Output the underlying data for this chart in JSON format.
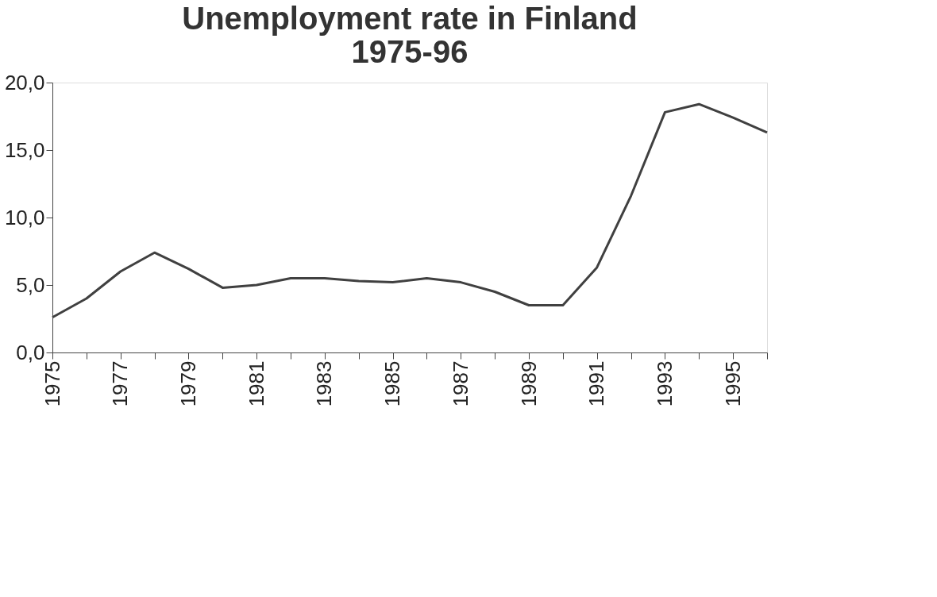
{
  "chart_data": {
    "type": "line",
    "title": "Unemployment rate in Finland\n1975-96",
    "categories": [
      "1975",
      null,
      "1977",
      null,
      "1979",
      null,
      "1981",
      null,
      "1983",
      null,
      "1985",
      null,
      "1987",
      null,
      "1989",
      null,
      "1991",
      null,
      "1993",
      null,
      "1995",
      null
    ],
    "series": [
      {
        "color": "#404040",
        "values": [
          2.6,
          4.0,
          6.0,
          7.4,
          6.2,
          4.8,
          5.0,
          5.5,
          5.5,
          5.3,
          5.2,
          5.5,
          5.2,
          4.5,
          3.5,
          3.5,
          6.3,
          11.6,
          17.8,
          18.4,
          17.4,
          16.3
        ]
      }
    ],
    "ylim": [
      0,
      20
    ],
    "yticks": [
      {
        "value": 0,
        "label": "0,0"
      },
      {
        "value": 5,
        "label": "5,0"
      },
      {
        "value": 10,
        "label": "10,0"
      },
      {
        "value": 15,
        "label": "15,0"
      },
      {
        "value": 20,
        "label": "20,0"
      }
    ],
    "grid": false,
    "marker": "none",
    "line_style": "solid"
  }
}
